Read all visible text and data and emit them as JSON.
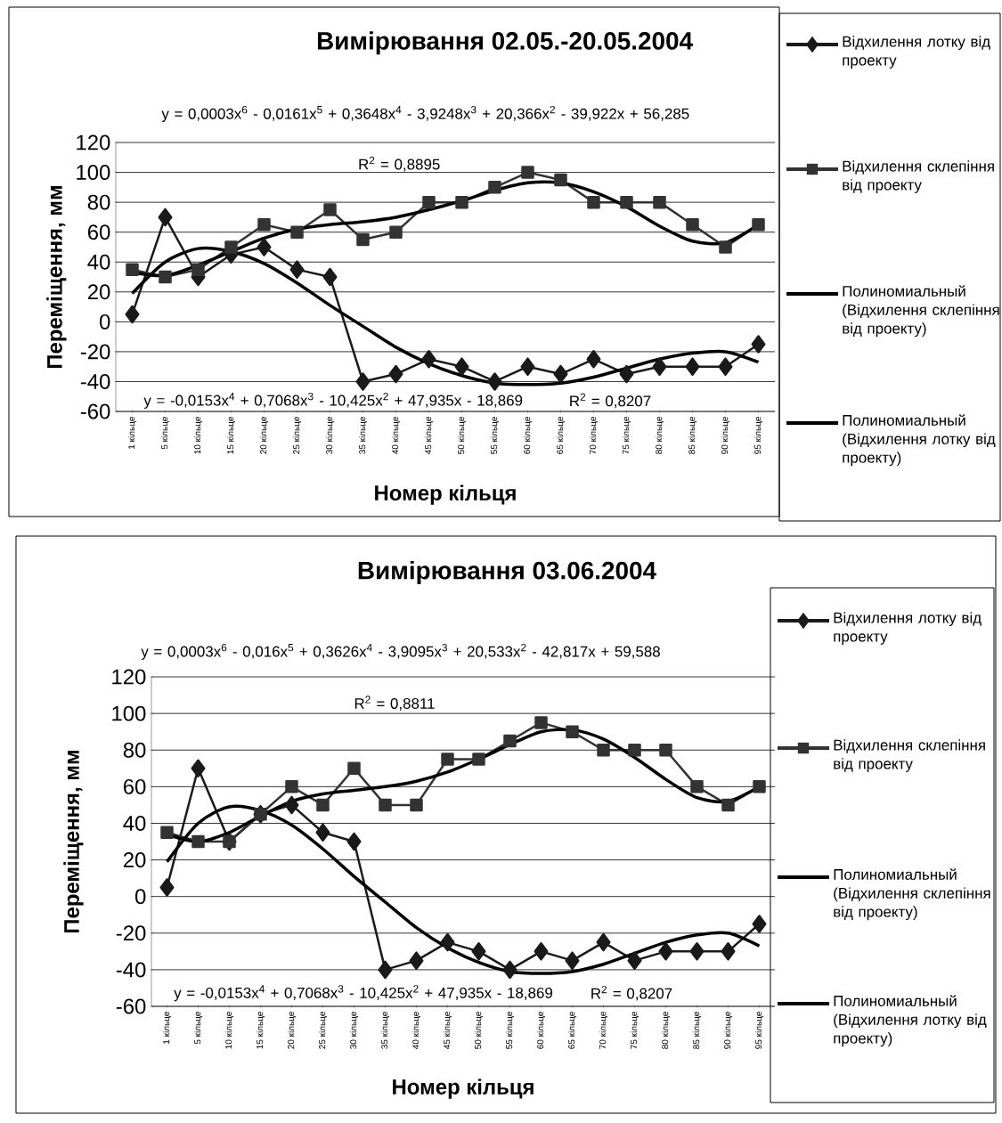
{
  "chart_data": [
    {
      "type": "line",
      "title": "Вимірювання 02.05.-20.05.2004",
      "xlabel": "Номер кільця",
      "ylabel": "Переміщення, мм",
      "categories": [
        "1 кільце",
        "5 кільце",
        "10 кільце",
        "15 кільце",
        "20 кільце",
        "25 кільце",
        "30 кільце",
        "35 кільце",
        "40 кільце",
        "45 кільце",
        "50 кільце",
        "55 кільце",
        "60 кільце",
        "65 кільце",
        "70 кільце",
        "75 кільце",
        "80 кільце",
        "85 кільце",
        "90 кільце",
        "95 кільце"
      ],
      "series": [
        {
          "name": "Відхилення лотку від проекту",
          "color": "#1a1a1a",
          "marker": "diamond",
          "line_style": "solid",
          "values": [
            5,
            70,
            30,
            45,
            50,
            35,
            30,
            -40,
            -35,
            -25,
            -30,
            -40,
            -30,
            -35,
            -25,
            -35,
            -30,
            -30,
            -30,
            -15
          ]
        },
        {
          "name": "Відхилення склепіння від проекту",
          "color": "#333333",
          "marker": "square",
          "line_style": "solid",
          "values": [
            35,
            30,
            35,
            50,
            65,
            60,
            75,
            55,
            60,
            80,
            80,
            90,
            100,
            95,
            80,
            80,
            80,
            65,
            50,
            65
          ]
        },
        {
          "name": "Полиномиальный (Відхилення склепіння від проекту)",
          "color": "#000000",
          "marker": "none",
          "line_style": "solid",
          "values": [
            33,
            31,
            38,
            47,
            56,
            62,
            65,
            67,
            70,
            75,
            81,
            88,
            93,
            93,
            87,
            77,
            64,
            54,
            53,
            65
          ]
        },
        {
          "name": "Полиномиальный (Відхилення лотку від проекту)",
          "color": "#000000",
          "marker": "none",
          "line_style": "solid",
          "values": [
            19,
            40,
            49,
            47,
            39,
            26,
            11,
            -3,
            -17,
            -28,
            -36,
            -41,
            -42,
            -41,
            -37,
            -31,
            -25,
            -21,
            -20,
            -27
          ]
        }
      ],
      "ylim": [
        -60,
        120
      ],
      "yticks": [
        -60,
        -40,
        -20,
        0,
        20,
        40,
        60,
        80,
        100,
        120
      ],
      "grid": "y",
      "legend": "right",
      "annotations": [
        "y = 0,0003x$^{6}$ - 0,0161x$^{5}$ + 0,3648x$^{4}$ - 3,9248x$^{3}$ + 20,366x$^{2}$ - 39,922x + 56,285",
        "R$^{2}$ = 0,8895",
        "y = -0,0153x$^{4}$ + 0,7068x$^{3}$ - 10,425x$^{2}$ + 47,935x - 18,869",
        "R$^{2}$ = 0,8207"
      ]
    },
    {
      "type": "line",
      "title": "Вимірювання 03.06.2004",
      "xlabel": "Номер кільця",
      "ylabel": "Переміщення, мм",
      "categories": [
        "1 кільце",
        "5 кільце",
        "10 кільце",
        "15 кільце",
        "20 кільце",
        "25 кільце",
        "30 кільце",
        "35 кільце",
        "40 кільце",
        "45 кільце",
        "50 кільце",
        "55 кільце",
        "60 кільце",
        "65 кільце",
        "70 кільце",
        "75 кільце",
        "80 кільце",
        "85 кільце",
        "90 кільце",
        "95 кільце"
      ],
      "series": [
        {
          "name": "Відхилення лотку від проекту",
          "color": "#1a1a1a",
          "marker": "diamond",
          "line_style": "solid",
          "values": [
            5,
            70,
            30,
            45,
            50,
            35,
            30,
            -40,
            -35,
            -25,
            -30,
            -40,
            -30,
            -35,
            -25,
            -35,
            -30,
            -30,
            -30,
            -15
          ]
        },
        {
          "name": "Відхилення склепіння від проекту",
          "color": "#333333",
          "marker": "square",
          "line_style": "solid",
          "values": [
            35,
            30,
            30,
            45,
            60,
            50,
            70,
            50,
            50,
            75,
            75,
            85,
            95,
            90,
            80,
            80,
            80,
            60,
            50,
            60
          ]
        },
        {
          "name": "Полиномиальный (Відхилення склепіння від проекту)",
          "color": "#000000",
          "marker": "none",
          "line_style": "solid",
          "values": [
            34,
            30,
            35,
            44,
            52,
            56,
            58,
            60,
            63,
            68,
            75,
            83,
            90,
            91,
            86,
            76,
            64,
            54,
            52,
            60
          ]
        },
        {
          "name": "Полиномиальный (Відхилення лотку від проекту)",
          "color": "#000000",
          "marker": "none",
          "line_style": "solid",
          "values": [
            19,
            40,
            49,
            47,
            39,
            26,
            11,
            -3,
            -17,
            -28,
            -36,
            -41,
            -42,
            -41,
            -37,
            -31,
            -25,
            -21,
            -20,
            -27
          ]
        }
      ],
      "ylim": [
        -60,
        120
      ],
      "yticks": [
        -60,
        -40,
        -20,
        0,
        20,
        40,
        60,
        80,
        100,
        120
      ],
      "grid": "y",
      "legend": "right",
      "annotations": [
        "y = 0,0003x$^{6}$ - 0,016x$^{5}$ + 0,3626x$^{4}$ - 3,9095x$^{3}$ + 20,533x$^{2}$ - 42,817x + 59,588",
        "R$^{2}$ = 0,8811",
        "y = -0,0153x$^{4}$ + 0,7068x$^{3}$ - 10,425x$^{2}$ + 47,935x - 18,869",
        "R$^{2}$ = 0,8207"
      ]
    }
  ]
}
